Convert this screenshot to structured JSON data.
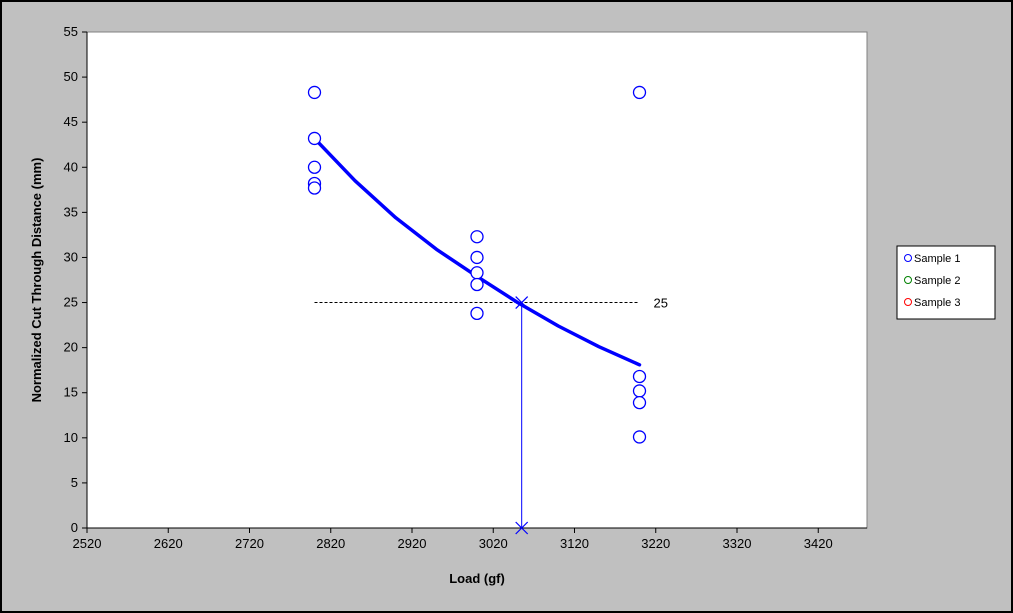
{
  "chart_data": {
    "type": "scatter",
    "xlabel": "Load (gf)",
    "ylabel": "Normalized Cut Through Distance (mm)",
    "xlim": [
      2520,
      3480
    ],
    "ylim": [
      0,
      55
    ],
    "xticks": [
      2520,
      2620,
      2720,
      2820,
      2920,
      3020,
      3120,
      3220,
      3320,
      3420
    ],
    "yticks": [
      0,
      5,
      10,
      15,
      20,
      25,
      30,
      35,
      40,
      45,
      50,
      55
    ],
    "legend_position": "right",
    "grid": false,
    "series": [
      {
        "name": "Sample 1",
        "color": "#0000ff",
        "marker": "circle",
        "points": [
          [
            2800,
            48.3
          ],
          [
            2800,
            43.2
          ],
          [
            2800,
            40.0
          ],
          [
            2800,
            38.2
          ],
          [
            2800,
            37.7
          ],
          [
            3000,
            32.3
          ],
          [
            3000,
            30.0
          ],
          [
            3000,
            28.3
          ],
          [
            3000,
            27.0
          ],
          [
            3000,
            23.8
          ],
          [
            3200,
            48.3
          ],
          [
            3200,
            16.8
          ],
          [
            3200,
            15.2
          ],
          [
            3200,
            13.9
          ],
          [
            3200,
            10.1
          ]
        ]
      },
      {
        "name": "Sample 2",
        "color": "#008000",
        "marker": "circle",
        "points": []
      },
      {
        "name": "Sample 3",
        "color": "#ff0000",
        "marker": "circle",
        "points": []
      }
    ],
    "trendline": {
      "color": "#0000ff",
      "x": [
        2800,
        2850,
        2900,
        2950,
        3000,
        3050,
        3100,
        3150,
        3200
      ],
      "y": [
        43.2,
        38.5,
        34.4,
        30.9,
        27.9,
        25.0,
        22.4,
        20.1,
        18.1
      ]
    },
    "reference": {
      "value_label": "25",
      "y": 25,
      "x_from": 2800,
      "x_to": 3200,
      "x_intersect": 3055,
      "color": "#000000",
      "drop_color": "#0000ff"
    }
  }
}
